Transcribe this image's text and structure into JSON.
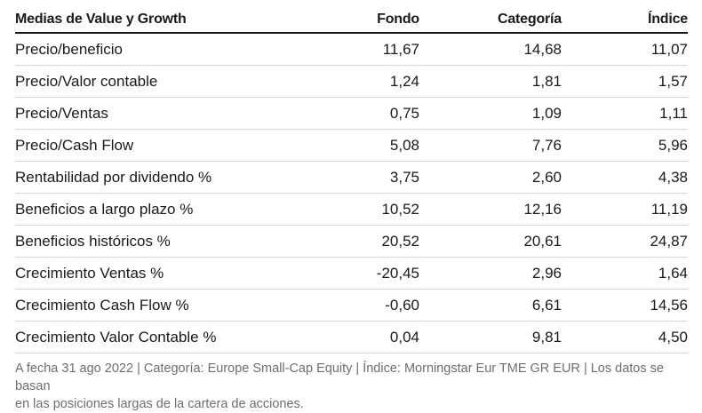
{
  "table": {
    "headers": {
      "title": "Medias de Value y Growth",
      "fund": "Fondo",
      "category": "Categoría",
      "index": "Índice"
    },
    "rows": [
      {
        "label": "Precio/beneficio",
        "fund": "11,67",
        "category": "14,68",
        "index": "11,07"
      },
      {
        "label": "Precio/Valor contable",
        "fund": "1,24",
        "category": "1,81",
        "index": "1,57"
      },
      {
        "label": "Precio/Ventas",
        "fund": "0,75",
        "category": "1,09",
        "index": "1,11"
      },
      {
        "label": "Precio/Cash Flow",
        "fund": "5,08",
        "category": "7,76",
        "index": "5,96"
      },
      {
        "label": "Rentabilidad por dividendo %",
        "fund": "3,75",
        "category": "2,60",
        "index": "4,38"
      },
      {
        "label": "Beneficios a largo plazo %",
        "fund": "10,52",
        "category": "12,16",
        "index": "11,19"
      },
      {
        "label": "Beneficios históricos %",
        "fund": "20,52",
        "category": "20,61",
        "index": "24,87"
      },
      {
        "label": "Crecimiento Ventas %",
        "fund": "-20,45",
        "category": "2,96",
        "index": "1,64"
      },
      {
        "label": "Crecimiento Cash Flow %",
        "fund": "-0,60",
        "category": "6,61",
        "index": "14,56"
      },
      {
        "label": "Crecimiento Valor Contable %",
        "fund": "0,04",
        "category": "9,81",
        "index": "4,50"
      }
    ]
  },
  "footnote": {
    "line1": "A fecha 31 ago 2022 | Categoría: Europe Small-Cap Equity | Índice: Morningstar Eur TME GR EUR | Los datos se basan",
    "line2": "en las posiciones largas de la cartera de acciones."
  },
  "colors": {
    "text": "#1a1a1a",
    "muted": "#6e6e6e",
    "rule": "#d6d6d6"
  }
}
